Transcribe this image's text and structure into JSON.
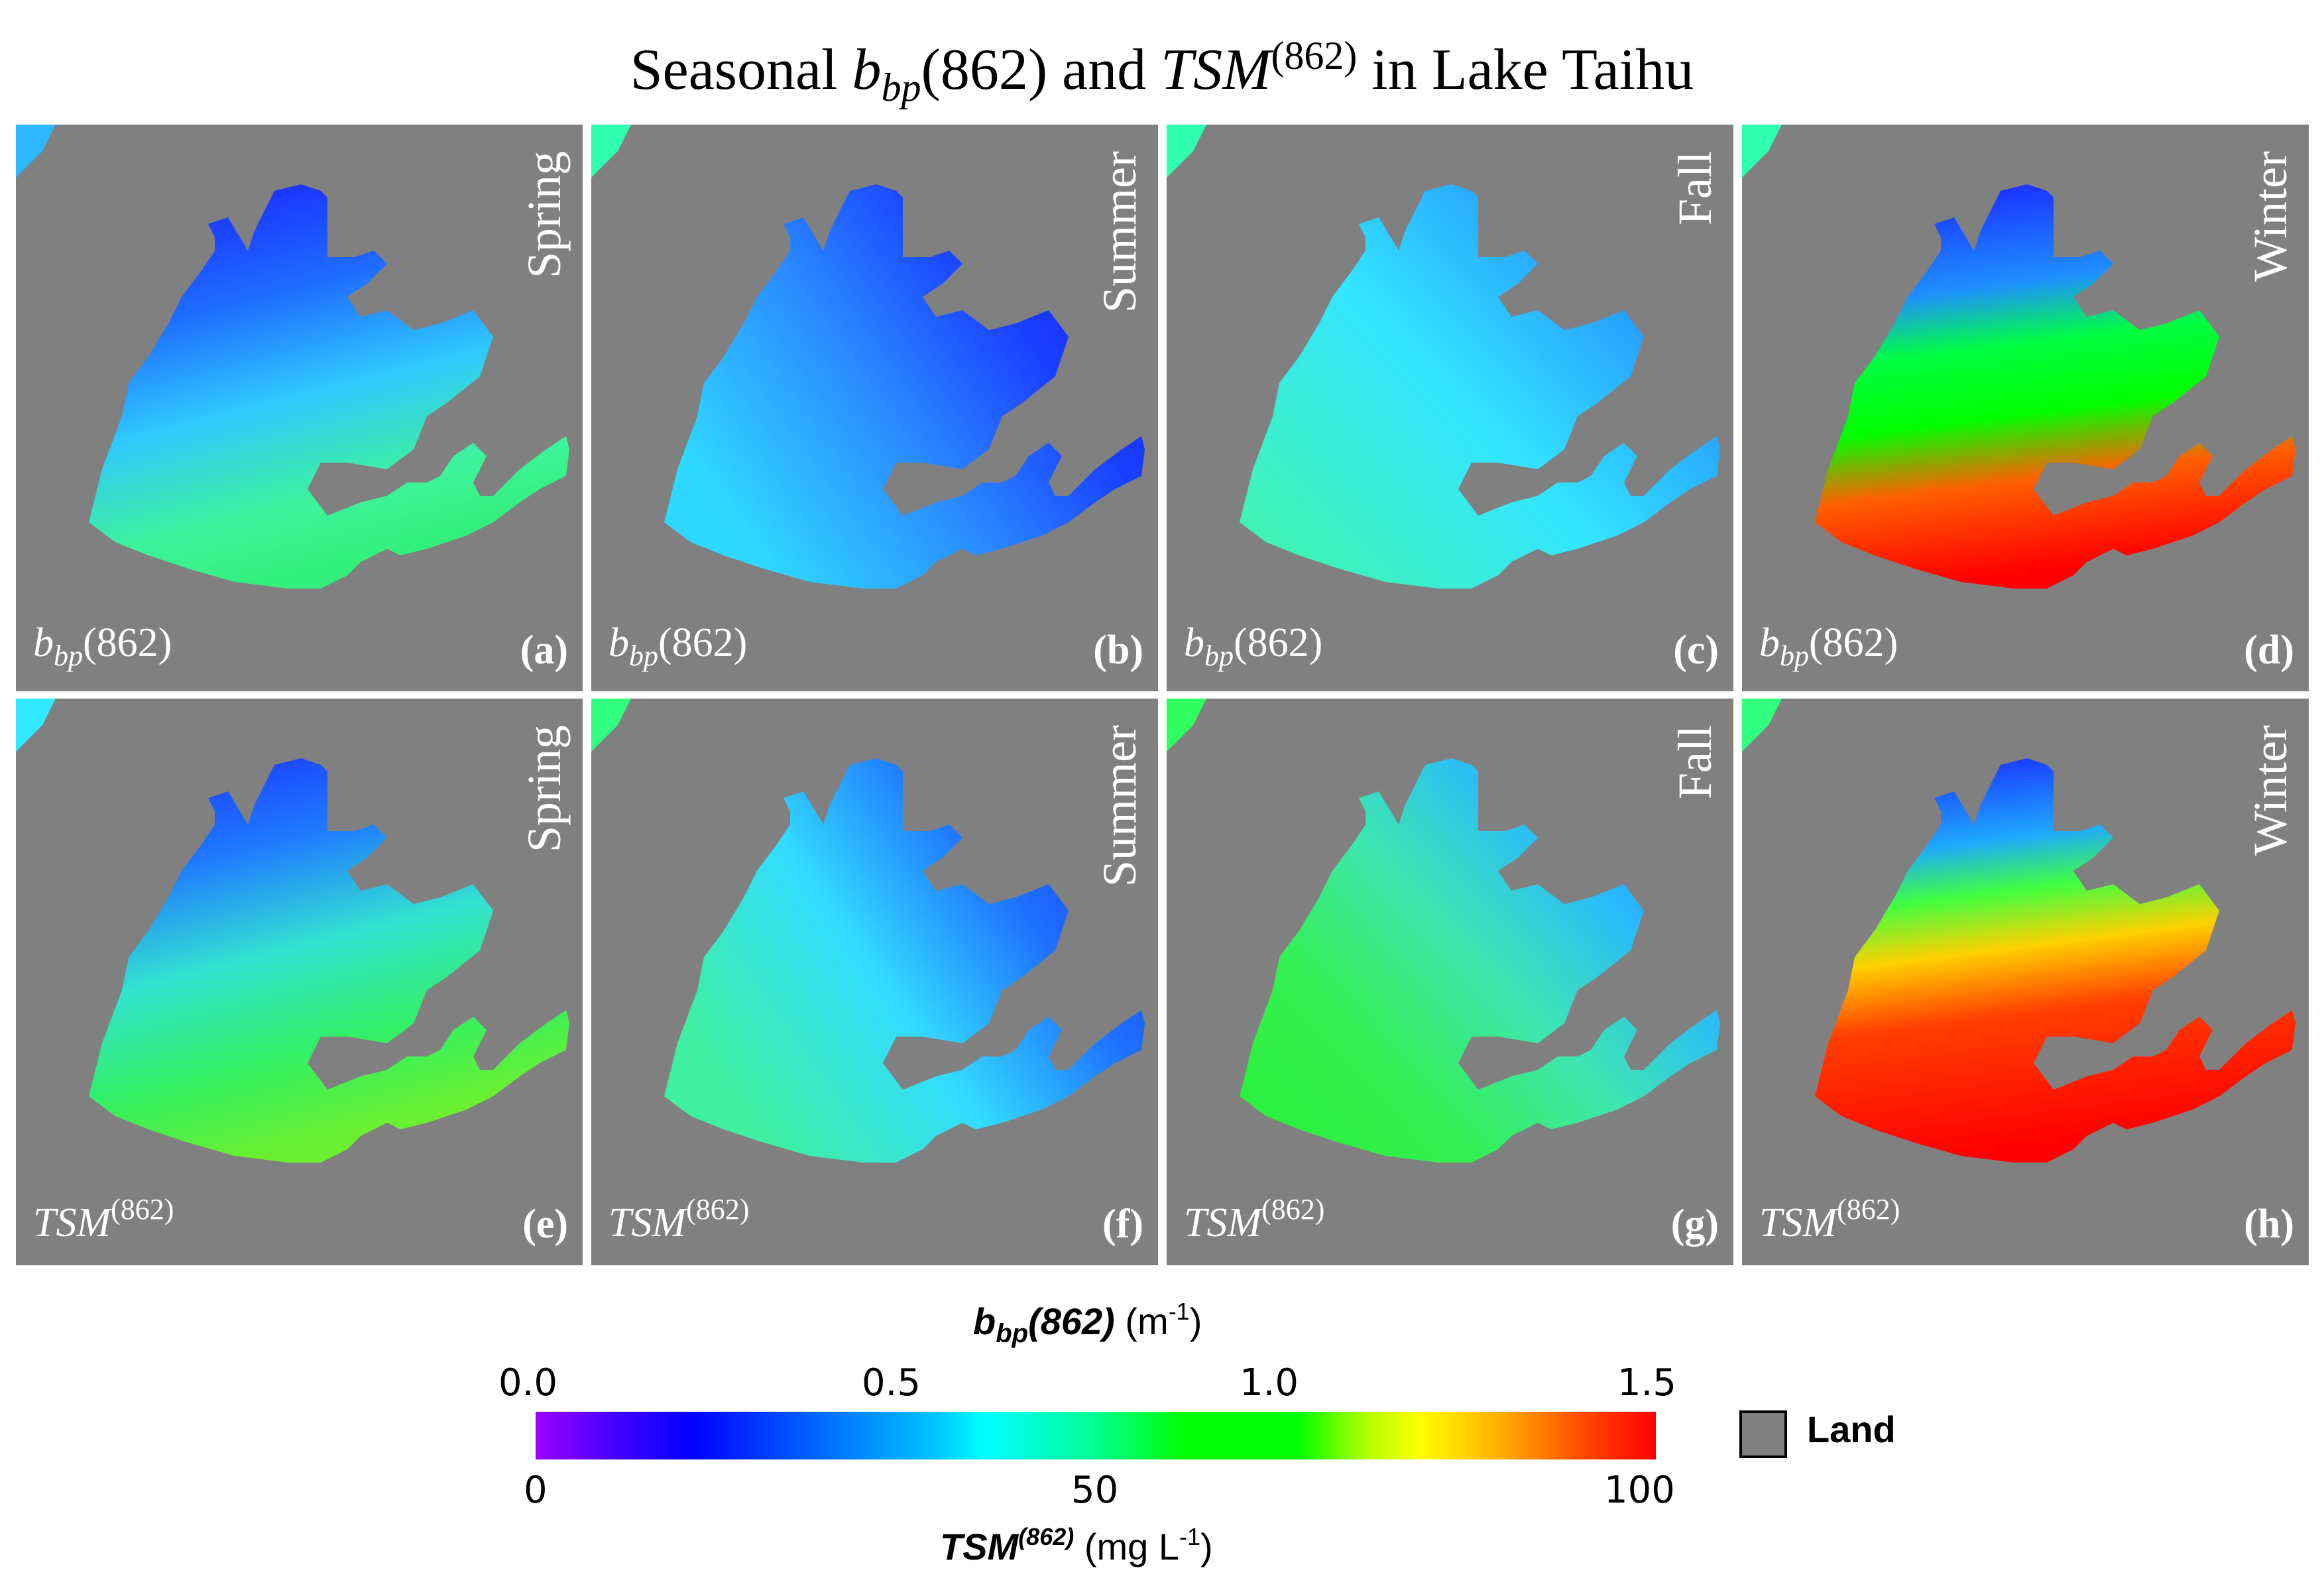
{
  "title": {
    "part1": "Seasonal ",
    "b": "b",
    "bsub": "bp",
    "part2": "(862) and ",
    "tsm": "TSM",
    "tsmsup": "(862)",
    "part3": " in Lake Taihu"
  },
  "panels": [
    {
      "season": "Spring",
      "var_main": "b",
      "var_sub": "bp",
      "var_rest": "(862)",
      "var_type": "bbp",
      "letter": "(a)"
    },
    {
      "season": "Summer",
      "var_main": "b",
      "var_sub": "bp",
      "var_rest": "(862)",
      "var_type": "bbp",
      "letter": "(b)"
    },
    {
      "season": "Fall",
      "var_main": "b",
      "var_sub": "bp",
      "var_rest": "(862)",
      "var_type": "bbp",
      "letter": "(c)"
    },
    {
      "season": "Winter",
      "var_main": "b",
      "var_sub": "bp",
      "var_rest": "(862)",
      "var_type": "bbp",
      "letter": "(d)"
    },
    {
      "season": "Spring",
      "var_main": "TSM",
      "var_sup": "(862)",
      "var_type": "tsm",
      "letter": "(e)"
    },
    {
      "season": "Summer",
      "var_main": "TSM",
      "var_sup": "(862)",
      "var_type": "tsm",
      "letter": "(f)"
    },
    {
      "season": "Fall",
      "var_main": "TSM",
      "var_sup": "(862)",
      "var_type": "tsm",
      "letter": "(g)"
    },
    {
      "season": "Winter",
      "var_main": "TSM",
      "var_sup": "(862)",
      "var_type": "tsm",
      "letter": "(h)"
    }
  ],
  "colorbar": {
    "top_title_main": "b",
    "top_title_sub": "bp",
    "top_title_rest": "(862)",
    "top_unit": " (m",
    "top_unit_sup": "-1",
    "top_unit_end": ")",
    "top_ticks": [
      "0.0",
      "0.5",
      "1.0",
      "1.5"
    ],
    "bottom_ticks": [
      "0",
      "50",
      "100"
    ],
    "bottom_title_main": "TSM",
    "bottom_title_sup": "(862)",
    "bottom_unit": " (mg L",
    "bottom_unit_sup": "-1",
    "bottom_unit_end": ")",
    "colors": [
      "#9b00ff",
      "#0000ff",
      "#00ffff",
      "#00ff00",
      "#ffff00",
      "#ff0000"
    ]
  },
  "legend": {
    "land_label": "Land",
    "land_color": "#808080"
  }
}
